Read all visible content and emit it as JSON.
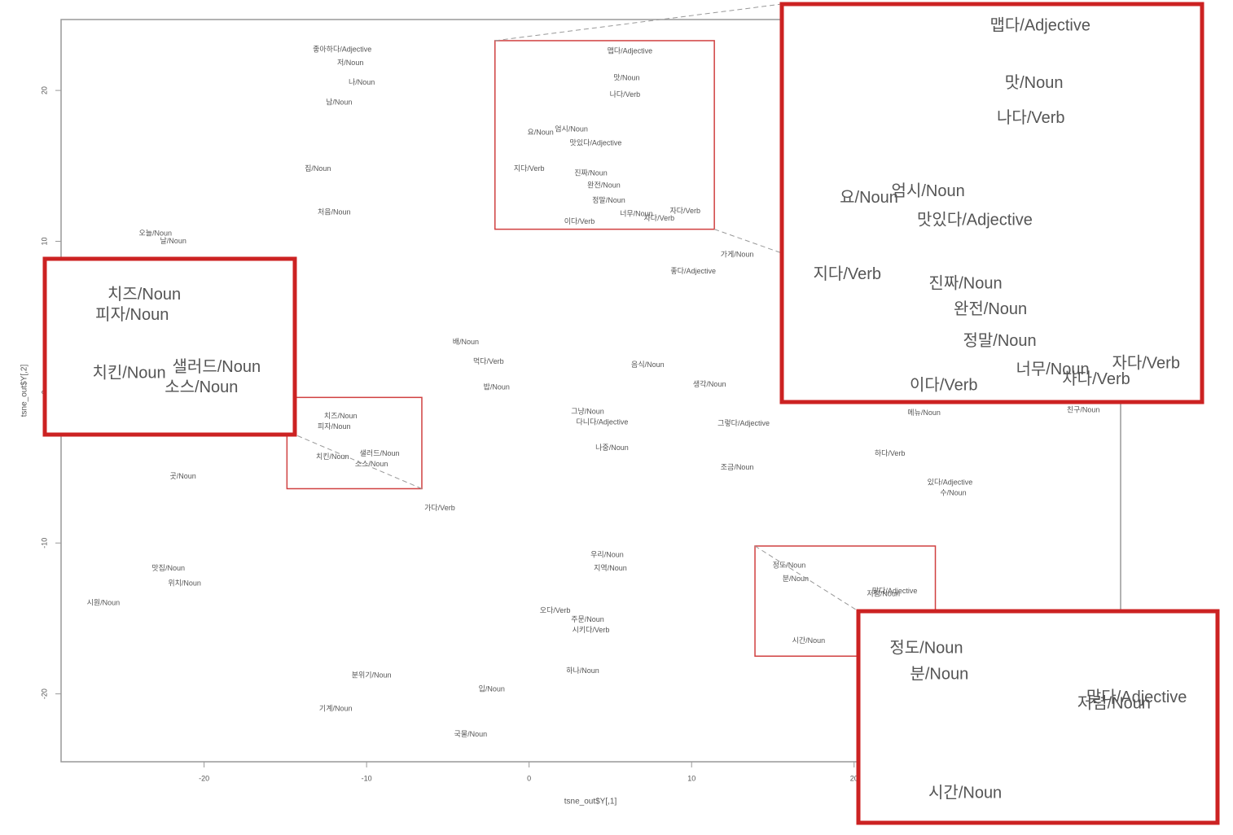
{
  "chart_data": {
    "type": "scatter",
    "xlabel": "tsne_out$Y[,1]",
    "ylabel": "tsne_out$Y[,2]",
    "xlim": [
      -28.8,
      36.4
    ],
    "ylim": [
      -24.5,
      24.7
    ],
    "xticks": [
      -20,
      -10,
      0,
      10,
      20
    ],
    "yticks": [
      -20,
      -10,
      0,
      10,
      20
    ],
    "labels": [
      "맵다/Adjective",
      "맛/Noun",
      "나다/Verb",
      "요/Noun",
      "엄시/Noun",
      "맛있다/Adjective",
      "지다/Verb",
      "진짜/Noun",
      "완전/Noun",
      "정말/Noun",
      "너무/Noun",
      "차다/Verb",
      "자다/Verb",
      "이다/Verb",
      "치즈/Noun",
      "피자/Noun",
      "치킨/Noun",
      "샐러드/Noun",
      "소스/Noun",
      "정도/Noun",
      "분/Noun",
      "맞다/Adjective",
      "저렴/Noun",
      "시간/Noun",
      "좋아하다/Adjective",
      "저/Noun",
      "나/Noun",
      "남/Noun",
      "집/Noun",
      "처음/Noun",
      "오늘/Noun",
      "날/Noun",
      "배/Noun",
      "먹다/Verb",
      "밥/Noun",
      "가게/Noun",
      "좋다/Adjective",
      "음식/Noun",
      "생각/Noun",
      "그냥/Noun",
      "다니다/Adjective",
      "나중/Noun",
      "그렇다/Adjective",
      "조금/Noun",
      "메뉴/Noun",
      "하다/Verb",
      "있다/Adjective",
      "수/Noun",
      "곳/Noun",
      "우리/Noun",
      "지역/Noun",
      "맛집/Noun",
      "위치/Noun",
      "시원/Noun",
      "분위기/Noun",
      "기계/Noun",
      "입/Noun",
      "국물/Noun",
      "하나/Noun",
      "시키다/Verb",
      "주문/Noun",
      "오다/Verb",
      "친구/Noun",
      "가다/Verb"
    ],
    "x": [
      6.2,
      6.0,
      5.9,
      0.7,
      2.6,
      4.1,
      0.0,
      3.8,
      4.6,
      4.9,
      6.6,
      8.0,
      9.6,
      3.1,
      -11.6,
      -12.0,
      -12.1,
      -9.2,
      -9.7,
      16.0,
      16.4,
      22.5,
      21.8,
      17.2,
      -11.5,
      -11.0,
      -10.3,
      -11.7,
      -13.0,
      -12.0,
      -23.0,
      -21.9,
      -3.9,
      -2.5,
      -2.0,
      12.8,
      10.1,
      7.3,
      11.1,
      3.6,
      4.5,
      5.1,
      13.2,
      12.8,
      24.3,
      22.2,
      25.9,
      26.1,
      -21.3,
      4.8,
      5.0,
      -22.2,
      -21.2,
      -26.2,
      -9.7,
      -11.9,
      -2.3,
      -3.6,
      3.3,
      3.8,
      3.6,
      1.6,
      34.1,
      -5.5
    ],
    "values": [
      22.6,
      20.8,
      19.7,
      17.2,
      17.4,
      16.5,
      14.8,
      14.5,
      13.7,
      12.7,
      11.8,
      11.5,
      12.0,
      11.3,
      -1.6,
      -2.3,
      -4.3,
      -4.1,
      -4.8,
      -11.5,
      -12.4,
      -13.2,
      -13.4,
      -16.5,
      22.7,
      21.8,
      20.5,
      19.2,
      14.8,
      11.9,
      10.5,
      10.0,
      3.3,
      2.0,
      0.3,
      9.1,
      8.0,
      1.8,
      0.5,
      -1.3,
      -2.0,
      -3.7,
      -2.1,
      -5.0,
      -1.4,
      -4.1,
      -6.0,
      -6.7,
      -5.6,
      -10.8,
      -11.7,
      -11.7,
      -12.7,
      -14.0,
      -18.8,
      -21.0,
      -19.7,
      -22.7,
      -18.5,
      -15.8,
      -15.1,
      -14.5,
      -1.2,
      -7.7
    ],
    "insets": [
      {
        "xlim": [
          -2.1,
          11.4
        ],
        "ylim": [
          10.8,
          23.3
        ]
      },
      {
        "xlim": [
          -14.9,
          -6.6
        ],
        "ylim": [
          -6.4,
          -0.35
        ]
      },
      {
        "xlim": [
          13.9,
          25.0
        ],
        "ylim": [
          -17.5,
          -10.2
        ]
      }
    ]
  }
}
